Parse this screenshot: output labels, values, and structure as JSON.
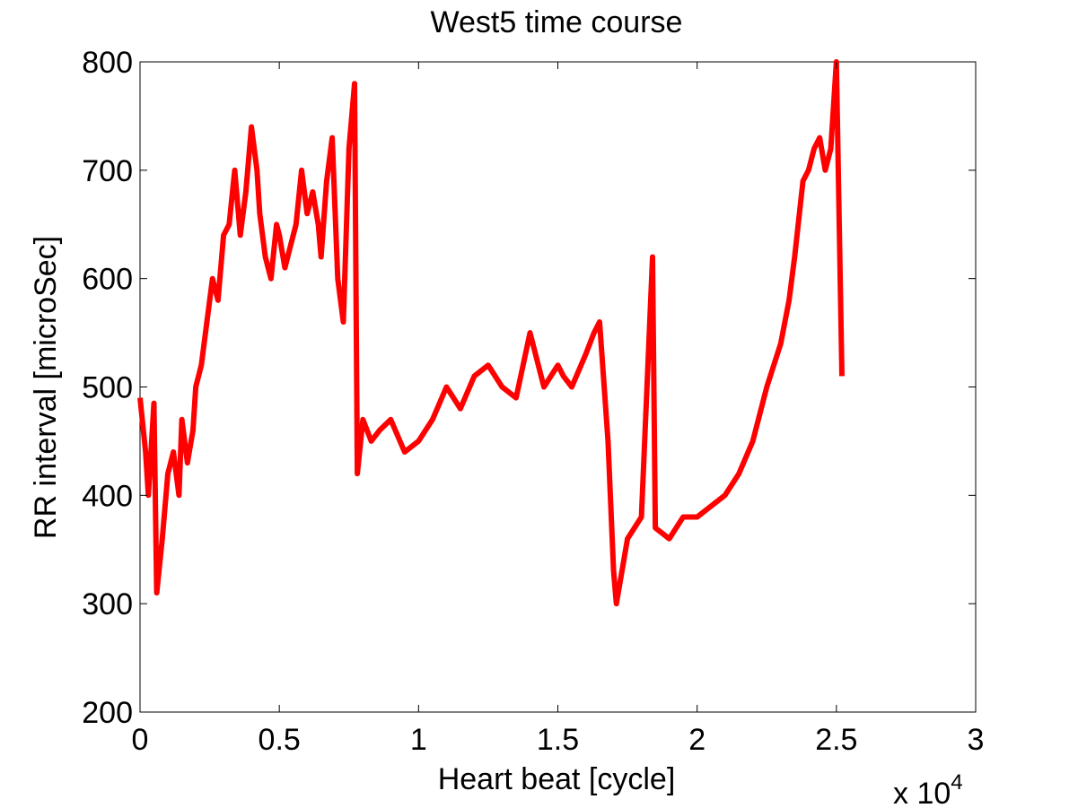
{
  "chart_data": {
    "type": "line",
    "title": "West5 time course",
    "xlabel": "Heart beat [cycle]",
    "ylabel": "RR interval [microSec]",
    "x_multiplier_label": "x 10",
    "x_multiplier_exponent": "4",
    "xlim": [
      0,
      3
    ],
    "ylim": [
      200,
      800
    ],
    "x_ticks": [
      0,
      0.5,
      1,
      1.5,
      2,
      2.5,
      3
    ],
    "x_tick_labels": [
      "0",
      "0.5",
      "1",
      "1.5",
      "2",
      "2.5",
      "3"
    ],
    "y_ticks": [
      200,
      300,
      400,
      500,
      600,
      700,
      800
    ],
    "y_tick_labels": [
      "200",
      "300",
      "400",
      "500",
      "600",
      "700",
      "800"
    ],
    "grid": false,
    "line_color": "#ff0000",
    "series": [
      {
        "name": "",
        "x": [
          0.0,
          0.02,
          0.03,
          0.05,
          0.06,
          0.08,
          0.1,
          0.12,
          0.14,
          0.15,
          0.17,
          0.19,
          0.2,
          0.22,
          0.24,
          0.26,
          0.28,
          0.3,
          0.32,
          0.34,
          0.36,
          0.38,
          0.4,
          0.42,
          0.43,
          0.45,
          0.47,
          0.49,
          0.5,
          0.52,
          0.54,
          0.56,
          0.58,
          0.6,
          0.62,
          0.64,
          0.65,
          0.67,
          0.69,
          0.71,
          0.73,
          0.75,
          0.77,
          0.78,
          0.8,
          0.83,
          0.86,
          0.9,
          0.95,
          1.0,
          1.05,
          1.1,
          1.15,
          1.2,
          1.25,
          1.3,
          1.35,
          1.4,
          1.45,
          1.5,
          1.52,
          1.55,
          1.6,
          1.63,
          1.65,
          1.68,
          1.7,
          1.71,
          1.75,
          1.8,
          1.84,
          1.85,
          1.9,
          1.95,
          2.0,
          2.05,
          2.1,
          2.15,
          2.2,
          2.25,
          2.3,
          2.33,
          2.35,
          2.38,
          2.4,
          2.42,
          2.44,
          2.46,
          2.48,
          2.5,
          2.52
        ],
        "y": [
          490,
          440,
          400,
          485,
          310,
          360,
          420,
          440,
          400,
          470,
          430,
          460,
          500,
          520,
          560,
          600,
          580,
          640,
          650,
          700,
          640,
          680,
          740,
          700,
          660,
          620,
          600,
          650,
          640,
          610,
          630,
          650,
          700,
          660,
          680,
          650,
          620,
          690,
          730,
          600,
          560,
          720,
          780,
          420,
          470,
          450,
          460,
          470,
          440,
          450,
          470,
          500,
          480,
          510,
          520,
          500,
          490,
          550,
          500,
          520,
          510,
          500,
          530,
          550,
          560,
          450,
          330,
          300,
          360,
          380,
          620,
          370,
          360,
          380,
          380,
          390,
          400,
          420,
          450,
          500,
          540,
          580,
          620,
          690,
          700,
          720,
          730,
          700,
          720,
          800,
          510
        ]
      }
    ]
  }
}
